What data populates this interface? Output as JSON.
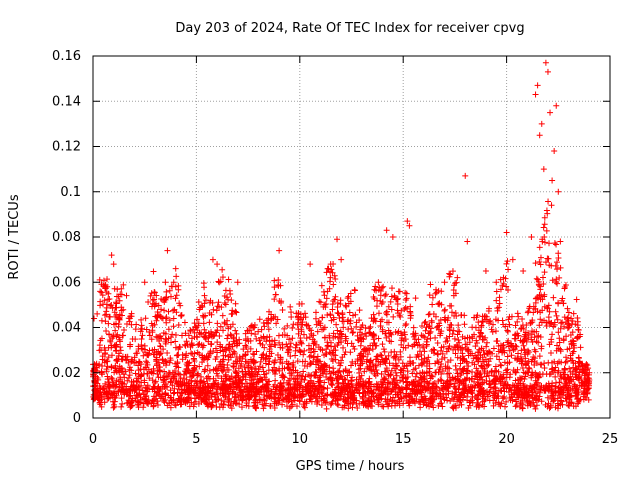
{
  "chart_data": {
    "type": "scatter",
    "title": "Day 203 of 2024, Rate Of TEC Index for receiver cpvg",
    "xlabel": "GPS time / hours",
    "ylabel": "ROTI / TECUs",
    "xlim": [
      0,
      25
    ],
    "ylim": [
      0,
      0.16
    ],
    "xticks": [
      "0",
      "5",
      "10",
      "15",
      "20",
      "25"
    ],
    "yticks": [
      "0",
      "0.02",
      "0.04",
      "0.06",
      "0.08",
      "0.1",
      "0.12",
      "0.14",
      "0.16"
    ],
    "grid": true,
    "marker": "+",
    "color": "#ff0000",
    "series": [
      {
        "x": [
          0.05,
          0.2,
          0.9,
          1.0,
          1.8,
          2.5,
          3.5,
          3.6,
          4.0,
          5.0,
          5.8,
          6.0,
          7.0,
          7.8,
          9.0,
          10.5,
          11.8,
          12.0,
          13.8,
          14.2,
          14.5,
          15.2,
          15.3,
          15.6,
          17.0,
          18.0,
          18.1,
          19.0,
          19.5,
          20.0,
          20.3,
          20.8,
          21.2,
          21.4,
          21.5,
          21.6,
          21.7,
          21.8,
          21.9,
          22.0,
          22.1,
          22.2,
          22.3,
          22.4,
          22.5,
          22.6,
          23.0,
          23.5,
          24.0
        ],
        "y": [
          0.044,
          0.046,
          0.072,
          0.068,
          0.045,
          0.06,
          0.06,
          0.074,
          0.066,
          0.04,
          0.07,
          0.068,
          0.06,
          0.04,
          0.074,
          0.068,
          0.079,
          0.07,
          0.06,
          0.083,
          0.08,
          0.087,
          0.085,
          0.053,
          0.06,
          0.107,
          0.078,
          0.065,
          0.06,
          0.082,
          0.07,
          0.065,
          0.08,
          0.143,
          0.147,
          0.125,
          0.13,
          0.11,
          0.157,
          0.153,
          0.135,
          0.105,
          0.118,
          0.138,
          0.1,
          0.078,
          0.043,
          0.025,
          0.02
        ]
      }
    ]
  }
}
